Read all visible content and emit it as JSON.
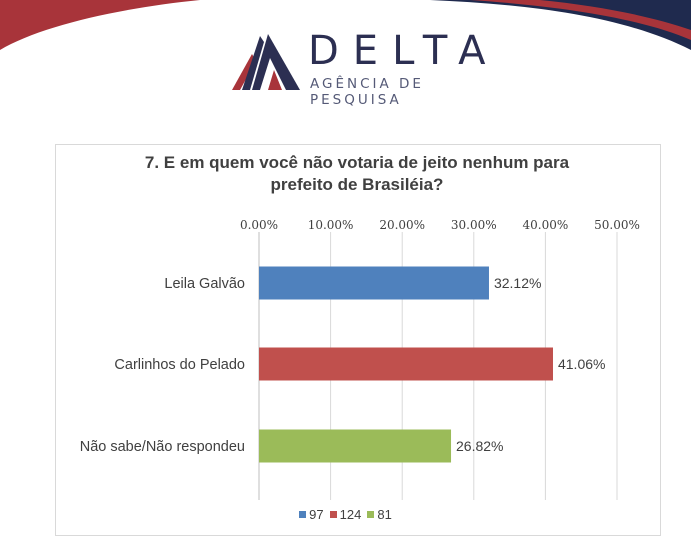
{
  "brand": {
    "name": "DELTA",
    "tagline": "AGÊNCIA DE PESQUISA",
    "colors": {
      "navy": "#2c2f52",
      "red": "#a8343a",
      "banner_navy": "#1f2a4e"
    }
  },
  "chart_data": {
    "type": "bar",
    "orientation": "horizontal",
    "title": "7. E em quem você não votaria de jeito nenhum para prefeito de Brasiléia?",
    "title_lines": [
      "7. E em quem você não votaria de jeito nenhum para",
      "prefeito de Brasiléia?"
    ],
    "categories": [
      "Leila Galvão",
      "Carlinhos do Pelado",
      "Não sabe/Não respondeu"
    ],
    "values": [
      32.12,
      41.06,
      26.82
    ],
    "value_labels": [
      "32.12%",
      "41.06%",
      "26.82%"
    ],
    "bar_colors": [
      "#4f81bd",
      "#c0504d",
      "#9bbb59"
    ],
    "xlim": [
      0,
      50
    ],
    "x_ticks": [
      0,
      10,
      20,
      30,
      40,
      50
    ],
    "x_tick_labels": [
      "0.00%",
      "10.00%",
      "20.00%",
      "30.00%",
      "40.00%",
      "50.00%"
    ],
    "x_axis_position": "top",
    "grid": true,
    "legend": {
      "placement": "bottom",
      "entries": [
        {
          "label": "97",
          "color": "#4f81bd"
        },
        {
          "label": "124",
          "color": "#c0504d"
        },
        {
          "label": "81",
          "color": "#9bbb59"
        }
      ]
    }
  }
}
